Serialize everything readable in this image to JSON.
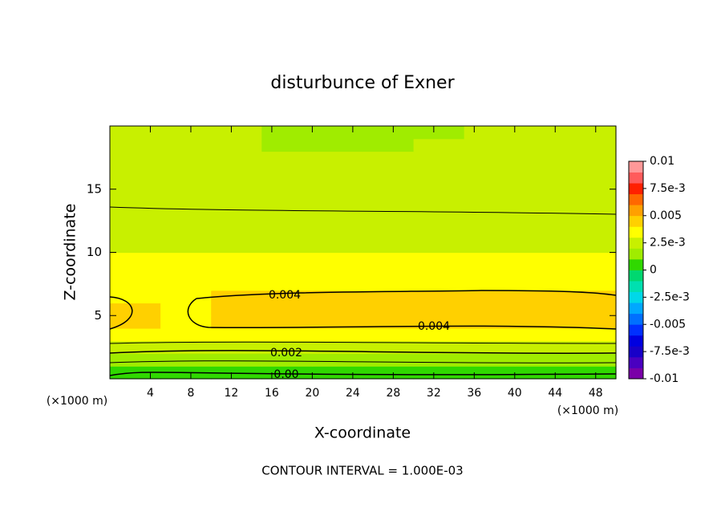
{
  "chart_data": {
    "type": "contour",
    "title": "disturbunce of Exner",
    "x_label": "X-coordinate",
    "y_label": "Z-coordinate",
    "x_unit": "(×1000 m)",
    "y_unit": "(×1000 m)",
    "footnote": "CONTOUR INTERVAL = 1.000E-03",
    "x": [
      2.5,
      7.5,
      12.5,
      17.5,
      22.5,
      27.5,
      32.5,
      37.5,
      42.5,
      47.5
    ],
    "z": [
      0.5,
      1.5,
      2.5,
      3.5,
      4.5,
      5.5,
      6.5,
      7.5,
      8.5,
      9.5,
      10.5,
      11.5,
      12.5,
      13.5,
      14.5,
      15.5,
      16.5,
      17.5,
      18.5,
      19.5
    ],
    "values": [
      [
        0.0005,
        0.0005,
        0.0005,
        0.0005,
        0.0005,
        0.0005,
        0.0005,
        0.0005,
        0.0005,
        0.0005
      ],
      [
        0.0015,
        0.0015,
        0.0015,
        0.0015,
        0.0015,
        0.0015,
        0.0015,
        0.0015,
        0.0015,
        0.0015
      ],
      [
        0.0025,
        0.0025,
        0.0025,
        0.0025,
        0.0025,
        0.0025,
        0.0025,
        0.0025,
        0.0025,
        0.0025
      ],
      [
        0.0032,
        0.0032,
        0.0032,
        0.0032,
        0.0032,
        0.0032,
        0.0032,
        0.0032,
        0.0032,
        0.0032
      ],
      [
        0.0041,
        0.0036,
        0.0043,
        0.0043,
        0.0043,
        0.0043,
        0.0044,
        0.0043,
        0.0042,
        0.0041
      ],
      [
        0.0042,
        0.0036,
        0.0045,
        0.0045,
        0.0045,
        0.0045,
        0.0046,
        0.0045,
        0.0045,
        0.0044
      ],
      [
        0.0038,
        0.0035,
        0.0041,
        0.0041,
        0.004,
        0.0041,
        0.0042,
        0.0042,
        0.0041,
        0.004
      ],
      [
        0.0034,
        0.0034,
        0.0034,
        0.0034,
        0.0034,
        0.0034,
        0.0034,
        0.0034,
        0.0034,
        0.0034
      ],
      [
        0.0033,
        0.0033,
        0.0033,
        0.0033,
        0.0033,
        0.0033,
        0.0033,
        0.0033,
        0.0033,
        0.0033
      ],
      [
        0.0031,
        0.0031,
        0.0031,
        0.0031,
        0.0031,
        0.0031,
        0.0031,
        0.0031,
        0.0031,
        0.0031
      ],
      [
        0.0028,
        0.0028,
        0.0028,
        0.0028,
        0.0028,
        0.0028,
        0.0028,
        0.0028,
        0.0028,
        0.0028
      ],
      [
        0.0027,
        0.0027,
        0.0027,
        0.0027,
        0.0027,
        0.0027,
        0.0027,
        0.0027,
        0.0027,
        0.0027
      ],
      [
        0.0026,
        0.0026,
        0.0026,
        0.0026,
        0.0026,
        0.0026,
        0.0026,
        0.0026,
        0.0026,
        0.0026
      ],
      [
        0.0024,
        0.0024,
        0.0024,
        0.0024,
        0.0024,
        0.0024,
        0.0024,
        0.0024,
        0.0024,
        0.0024
      ],
      [
        0.0023,
        0.0023,
        0.0023,
        0.0023,
        0.0023,
        0.0023,
        0.0023,
        0.0023,
        0.0023,
        0.0023
      ],
      [
        0.0023,
        0.0023,
        0.0023,
        0.0023,
        0.0023,
        0.0023,
        0.0023,
        0.0023,
        0.0023,
        0.0023
      ],
      [
        0.0022,
        0.0022,
        0.0022,
        0.0022,
        0.0022,
        0.0022,
        0.0022,
        0.0022,
        0.0022,
        0.0022
      ],
      [
        0.0022,
        0.0022,
        0.0022,
        0.0022,
        0.0022,
        0.0022,
        0.0022,
        0.0022,
        0.0022,
        0.0022
      ],
      [
        0.0022,
        0.0022,
        0.0022,
        0.0019,
        0.0019,
        0.0019,
        0.0021,
        0.0022,
        0.0022,
        0.0022
      ],
      [
        0.0022,
        0.0022,
        0.0022,
        0.0018,
        0.0018,
        0.0018,
        0.0019,
        0.0022,
        0.0022,
        0.0022
      ]
    ],
    "xlim": [
      0,
      50
    ],
    "ylim": [
      0,
      20
    ],
    "xticks": [
      4,
      8,
      12,
      16,
      20,
      24,
      28,
      32,
      36,
      40,
      44,
      48
    ],
    "yticks": [
      5,
      10,
      15
    ],
    "clim": [
      -0.01,
      0.01
    ],
    "cticks": [
      -0.01,
      {
        "value": -0.0075,
        "label": "-7.5e-3"
      },
      -0.005,
      {
        "value": -0.0025,
        "label": "-2.5e-3"
      },
      0,
      {
        "value": 0.0025,
        "label": "2.5e-3"
      },
      0.005,
      {
        "value": 0.0075,
        "label": "7.5e-3"
      },
      0.01
    ],
    "colors": [
      "#7a00a8",
      "#4a00c0",
      "#1800c8",
      "#0000e0",
      "#0030ff",
      "#0070ff",
      "#00a8ff",
      "#00d8e8",
      "#00e0b0",
      "#00d870",
      "#30d800",
      "#a0ec00",
      "#c8f000",
      "#ffff00",
      "#ffd000",
      "#ffa000",
      "#ff6800",
      "#ff2000",
      "#ff5c5c",
      "#ff9898"
    ],
    "contour_labels": [
      "0.004",
      "0.004",
      "0.002",
      "0.00"
    ]
  }
}
